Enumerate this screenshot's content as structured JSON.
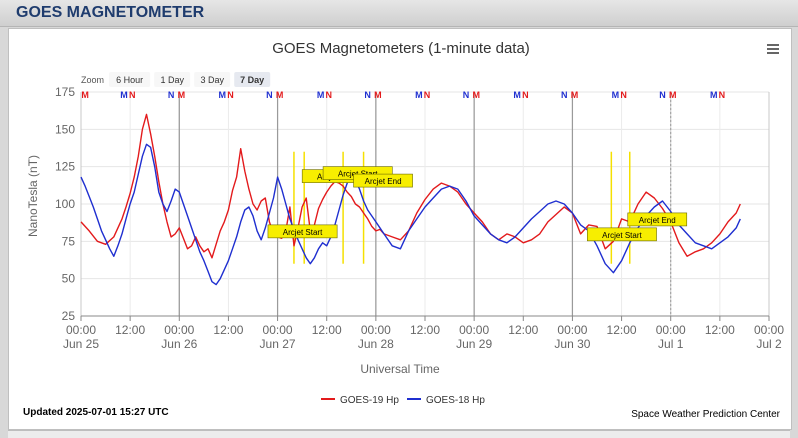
{
  "panel": {
    "title": "GOES MAGNETOMETER"
  },
  "chart_data": {
    "type": "line",
    "title": "GOES Magnetometers (1-minute data)",
    "xlabel": "Universal Time",
    "ylabel": "NanoTesla (nT)",
    "ylim": [
      25,
      175
    ],
    "yticks": [
      25,
      50,
      75,
      100,
      125,
      150,
      175
    ],
    "xlim_hours": [
      0,
      168
    ],
    "x_ticks": [
      {
        "h": 0,
        "time": "00:00",
        "date": "Jun 25"
      },
      {
        "h": 12,
        "time": "12:00",
        "date": ""
      },
      {
        "h": 24,
        "time": "00:00",
        "date": "Jun 26"
      },
      {
        "h": 36,
        "time": "12:00",
        "date": ""
      },
      {
        "h": 48,
        "time": "00:00",
        "date": "Jun 27"
      },
      {
        "h": 60,
        "time": "12:00",
        "date": ""
      },
      {
        "h": 72,
        "time": "00:00",
        "date": "Jun 28"
      },
      {
        "h": 84,
        "time": "12:00",
        "date": ""
      },
      {
        "h": 96,
        "time": "00:00",
        "date": "Jun 29"
      },
      {
        "h": 108,
        "time": "12:00",
        "date": ""
      },
      {
        "h": 120,
        "time": "00:00",
        "date": "Jun 30"
      },
      {
        "h": 132,
        "time": "12:00",
        "date": ""
      },
      {
        "h": 144,
        "time": "00:00",
        "date": "Jul 1"
      },
      {
        "h": 156,
        "time": "12:00",
        "date": ""
      },
      {
        "h": 168,
        "time": "00:00",
        "date": "Jul 2"
      }
    ],
    "zoom": {
      "label": "Zoom",
      "options": [
        "6 Hour",
        "1 Day",
        "3 Day",
        "7 Day"
      ],
      "selected": "7 Day"
    },
    "grid": true,
    "legend_position": "bottom-center",
    "series": [
      {
        "name": "GOES-19 Hp",
        "color": "#e31a1c",
        "x": [
          0,
          2,
          4,
          6,
          8,
          9,
          10,
          11,
          12,
          13,
          14,
          15,
          16,
          17,
          18,
          19,
          20,
          21,
          22,
          23,
          24,
          25,
          26,
          27,
          28,
          29,
          30,
          31,
          32,
          33,
          34,
          35,
          36,
          37,
          38,
          39,
          40,
          41,
          42,
          43,
          44,
          45,
          46,
          47,
          48,
          49,
          50,
          51,
          52,
          53,
          54,
          55,
          56,
          57,
          58,
          59,
          60,
          61,
          62,
          63,
          64,
          65,
          66,
          67,
          68,
          69,
          70,
          71,
          72,
          73,
          74,
          75,
          76,
          78,
          80,
          82,
          84,
          86,
          88,
          90,
          92,
          94,
          96,
          98,
          100,
          102,
          104,
          106,
          108,
          110,
          112,
          114,
          116,
          118,
          120,
          122,
          124,
          126,
          128,
          130,
          132,
          134,
          136,
          138,
          140,
          142,
          144,
          146,
          148,
          150,
          152,
          154,
          156,
          158,
          160,
          161
        ],
        "y": [
          88,
          82,
          75,
          73,
          78,
          84,
          90,
          98,
          107,
          118,
          132,
          150,
          160,
          147,
          132,
          115,
          100,
          88,
          78,
          80,
          84,
          77,
          70,
          72,
          78,
          72,
          68,
          70,
          64,
          73,
          82,
          88,
          96,
          109,
          118,
          137,
          122,
          110,
          100,
          96,
          102,
          104,
          88,
          80,
          78,
          77,
          82,
          98,
          72,
          84,
          98,
          104,
          82,
          86,
          97,
          103,
          108,
          112,
          115,
          114,
          112,
          108,
          105,
          100,
          98,
          94,
          90,
          85,
          82,
          83,
          80,
          79,
          78,
          76,
          82,
          94,
          103,
          110,
          114,
          112,
          108,
          100,
          94,
          88,
          80,
          76,
          80,
          78,
          74,
          76,
          80,
          88,
          93,
          98,
          94,
          80,
          86,
          85,
          70,
          75,
          90,
          88,
          100,
          108,
          104,
          97,
          88,
          74,
          65,
          68,
          70,
          74,
          80,
          88,
          94,
          100
        ]
      },
      {
        "name": "GOES-18 Hp",
        "color": "#1f2fd0",
        "x": [
          0,
          1,
          2,
          3,
          4,
          5,
          6,
          7,
          8,
          9,
          10,
          11,
          12,
          13,
          14,
          15,
          16,
          17,
          18,
          19,
          20,
          21,
          22,
          23,
          24,
          25,
          26,
          27,
          28,
          29,
          30,
          31,
          32,
          33,
          34,
          35,
          36,
          37,
          38,
          39,
          40,
          41,
          42,
          43,
          44,
          45,
          46,
          47,
          48,
          49,
          50,
          51,
          52,
          53,
          54,
          55,
          56,
          57,
          58,
          59,
          60,
          61,
          62,
          63,
          64,
          65,
          66,
          67,
          68,
          69,
          70,
          72,
          74,
          76,
          78,
          80,
          82,
          84,
          86,
          88,
          90,
          92,
          94,
          96,
          98,
          100,
          102,
          104,
          106,
          108,
          110,
          112,
          114,
          116,
          118,
          120,
          122,
          124,
          126,
          128,
          130,
          132,
          134,
          136,
          138,
          140,
          142,
          144,
          146,
          148,
          150,
          152,
          154,
          156,
          158,
          160,
          161
        ],
        "y": [
          118,
          112,
          105,
          98,
          90,
          82,
          76,
          70,
          65,
          72,
          80,
          90,
          100,
          108,
          120,
          132,
          140,
          138,
          125,
          108,
          100,
          95,
          102,
          110,
          108,
          100,
          92,
          84,
          76,
          68,
          62,
          55,
          48,
          46,
          50,
          56,
          62,
          70,
          78,
          88,
          96,
          98,
          92,
          82,
          76,
          84,
          94,
          104,
          118,
          110,
          100,
          90,
          83,
          76,
          70,
          64,
          60,
          64,
          70,
          74,
          72,
          78,
          86,
          96,
          106,
          114,
          118,
          116,
          110,
          102,
          96,
          88,
          80,
          72,
          70,
          82,
          90,
          98,
          104,
          110,
          112,
          110,
          102,
          92,
          86,
          80,
          76,
          74,
          78,
          84,
          90,
          95,
          100,
          102,
          100,
          94,
          86,
          82,
          72,
          60,
          54,
          62,
          74,
          84,
          92,
          98,
          102,
          95,
          86,
          80,
          74,
          72,
          70,
          74,
          78,
          84,
          90
        ]
      }
    ],
    "events": [
      {
        "label": "Arcjet Start",
        "h": 52
      },
      {
        "label": "Arcjet Start",
        "h": 54.5
      },
      {
        "label": "Arcjet Start",
        "h": 64
      },
      {
        "label": "Arcjet End",
        "h": 69
      },
      {
        "label": "Arcjet Start",
        "h": 129.5
      },
      {
        "label": "Arcjet End",
        "h": 134
      }
    ],
    "markers": [
      {
        "h": 1,
        "label": "M",
        "color": "#e31a1c"
      },
      {
        "h": 10.5,
        "label": "M",
        "color": "#1f2fd0"
      },
      {
        "h": 12.5,
        "label": "N",
        "color": "#e31a1c"
      },
      {
        "h": 22,
        "label": "N",
        "color": "#1f2fd0"
      },
      {
        "h": 24.5,
        "label": "M",
        "color": "#e31a1c"
      },
      {
        "h": 34.5,
        "label": "M",
        "color": "#1f2fd0"
      },
      {
        "h": 36.5,
        "label": "N",
        "color": "#e31a1c"
      },
      {
        "h": 46,
        "label": "N",
        "color": "#1f2fd0"
      },
      {
        "h": 48.5,
        "label": "M",
        "color": "#e31a1c"
      },
      {
        "h": 58.5,
        "label": "M",
        "color": "#1f2fd0"
      },
      {
        "h": 60.5,
        "label": "N",
        "color": "#e31a1c"
      },
      {
        "h": 70,
        "label": "N",
        "color": "#1f2fd0"
      },
      {
        "h": 72.5,
        "label": "M",
        "color": "#e31a1c"
      },
      {
        "h": 82.5,
        "label": "M",
        "color": "#1f2fd0"
      },
      {
        "h": 84.5,
        "label": "N",
        "color": "#e31a1c"
      },
      {
        "h": 94,
        "label": "N",
        "color": "#1f2fd0"
      },
      {
        "h": 96.5,
        "label": "M",
        "color": "#e31a1c"
      },
      {
        "h": 106.5,
        "label": "M",
        "color": "#1f2fd0"
      },
      {
        "h": 108.5,
        "label": "N",
        "color": "#e31a1c"
      },
      {
        "h": 118,
        "label": "N",
        "color": "#1f2fd0"
      },
      {
        "h": 120.5,
        "label": "M",
        "color": "#e31a1c"
      },
      {
        "h": 130.5,
        "label": "M",
        "color": "#1f2fd0"
      },
      {
        "h": 132.5,
        "label": "N",
        "color": "#e31a1c"
      },
      {
        "h": 142,
        "label": "N",
        "color": "#1f2fd0"
      },
      {
        "h": 144.5,
        "label": "M",
        "color": "#e31a1c"
      },
      {
        "h": 154.5,
        "label": "M",
        "color": "#1f2fd0"
      },
      {
        "h": 156.5,
        "label": "N",
        "color": "#e31a1c"
      }
    ],
    "updated": "Updated 2025-07-01 15:27 UTC",
    "credit": "Space Weather Prediction Center"
  }
}
